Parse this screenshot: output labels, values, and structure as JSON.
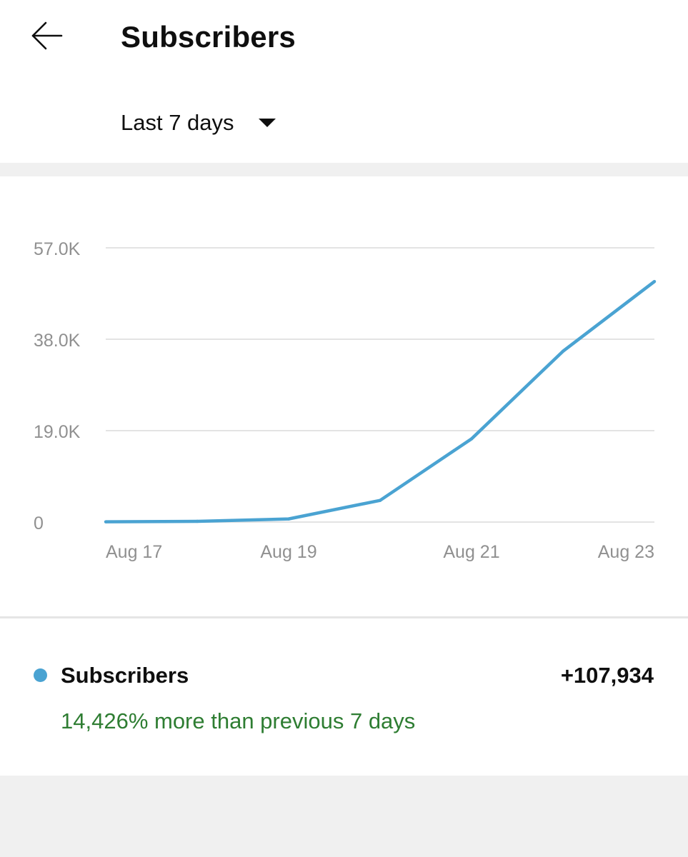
{
  "header": {
    "title": "Subscribers",
    "back_icon": "arrow-left-icon"
  },
  "filter": {
    "selected_period": "Last 7 days",
    "dropdown_icon": "caret-down-icon"
  },
  "chart_data": {
    "type": "line",
    "x": [
      "Aug 17",
      "Aug 18",
      "Aug 19",
      "Aug 20",
      "Aug 21",
      "Aug 22",
      "Aug 23"
    ],
    "x_tick_labels": [
      "Aug 17",
      "Aug 19",
      "Aug 21",
      "Aug 23"
    ],
    "series": [
      {
        "name": "Subscribers",
        "color": "#4aa3d2",
        "values": [
          50,
          150,
          650,
          4500,
          17300,
          35500,
          50000
        ]
      }
    ],
    "y_tick_labels": [
      "0",
      "19.0K",
      "38.0K",
      "57.0K"
    ],
    "y_ticks": [
      0,
      19000,
      38000,
      57000
    ],
    "ylim": [
      0,
      57000
    ],
    "grid": true,
    "legend": "below"
  },
  "summary": {
    "series_name": "Subscribers",
    "total": "+107,934",
    "comparison": "14,426% more than previous 7 days",
    "dot_color": "#4aa3d2",
    "comparison_color": "#2e7d32"
  }
}
